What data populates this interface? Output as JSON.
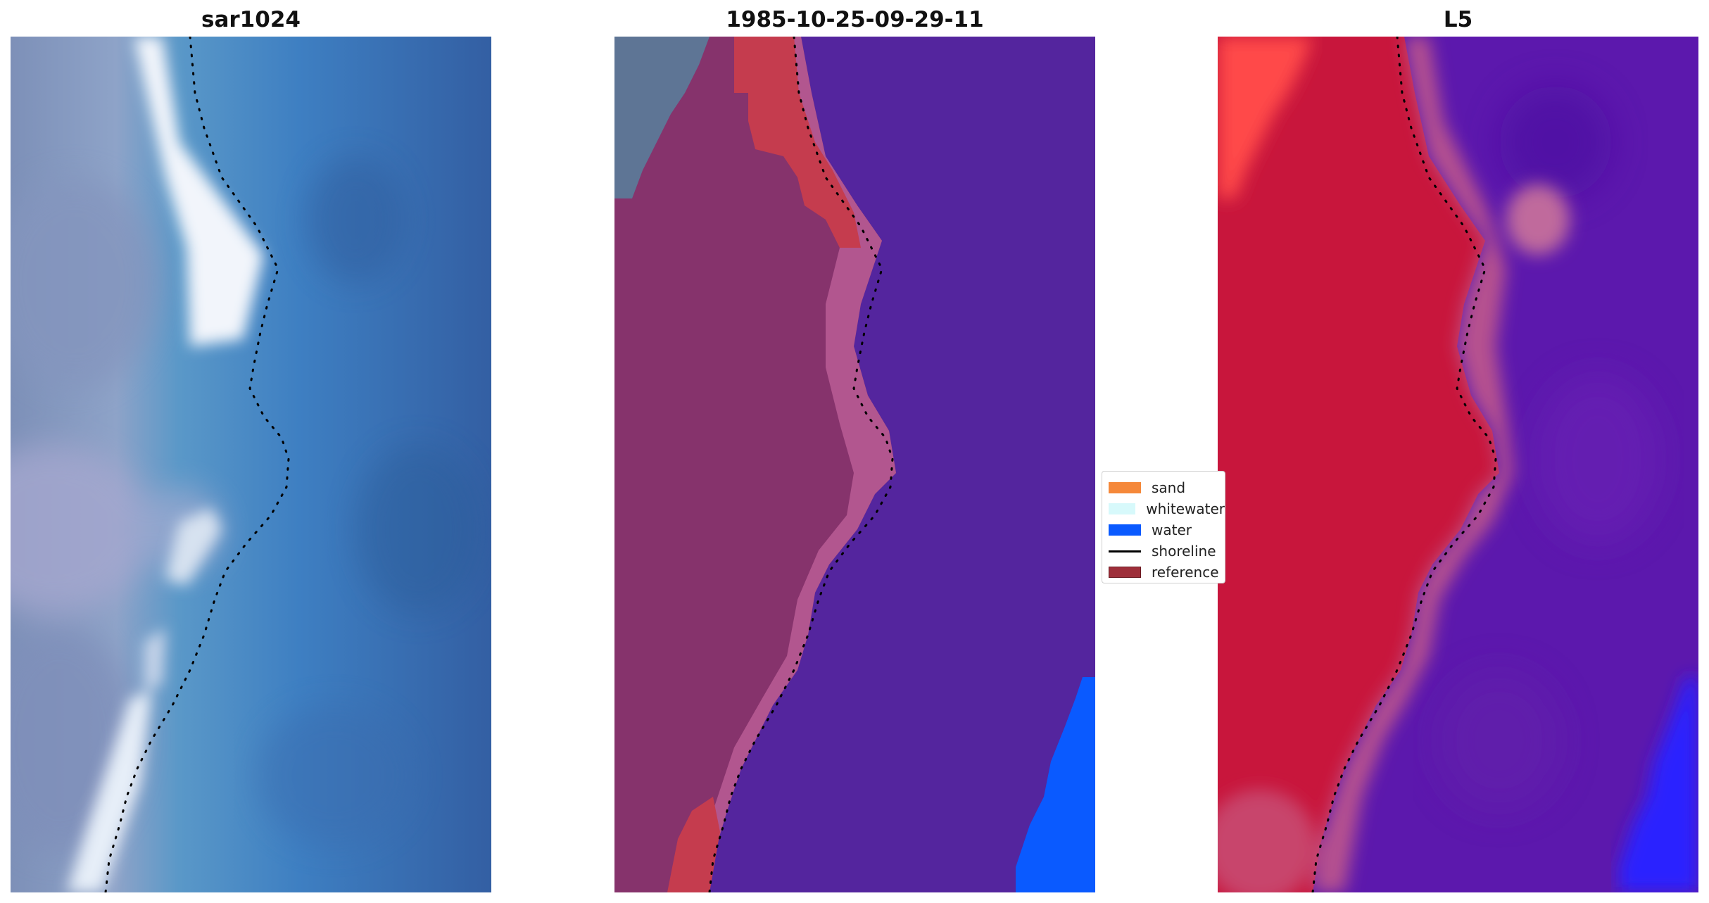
{
  "panels": [
    {
      "title": "sar1024"
    },
    {
      "title": "1985-10-25-09-29-11"
    },
    {
      "title": "L5"
    }
  ],
  "legend": {
    "items": [
      {
        "label": "sand",
        "color": "#f5883a",
        "kind": "patch"
      },
      {
        "label": "whitewater",
        "color": "#d7f9fb",
        "kind": "patch"
      },
      {
        "label": "water",
        "color": "#0a5aff",
        "kind": "patch"
      },
      {
        "label": "shoreline",
        "color": "#000000",
        "kind": "line"
      },
      {
        "label": "reference",
        "color": "#9e2f3a",
        "kind": "patch"
      }
    ]
  },
  "colors": {
    "sar_water": "#3f7fc0",
    "sar_land": "#7c8fb8",
    "sar_whitewater": "#eef4fb",
    "class_land": "#86336c",
    "class_water": "#54259e",
    "class_reference": "#c53c4e",
    "class_sand": "#5e7595",
    "class_whitewater_pink": "#b2568f",
    "class_blue": "#0a5aff",
    "l5_land": "#c8163c",
    "l5_water": "#5c18ad",
    "l5_blue": "#2a22ff",
    "l5_bright": "#ff4a4a"
  }
}
